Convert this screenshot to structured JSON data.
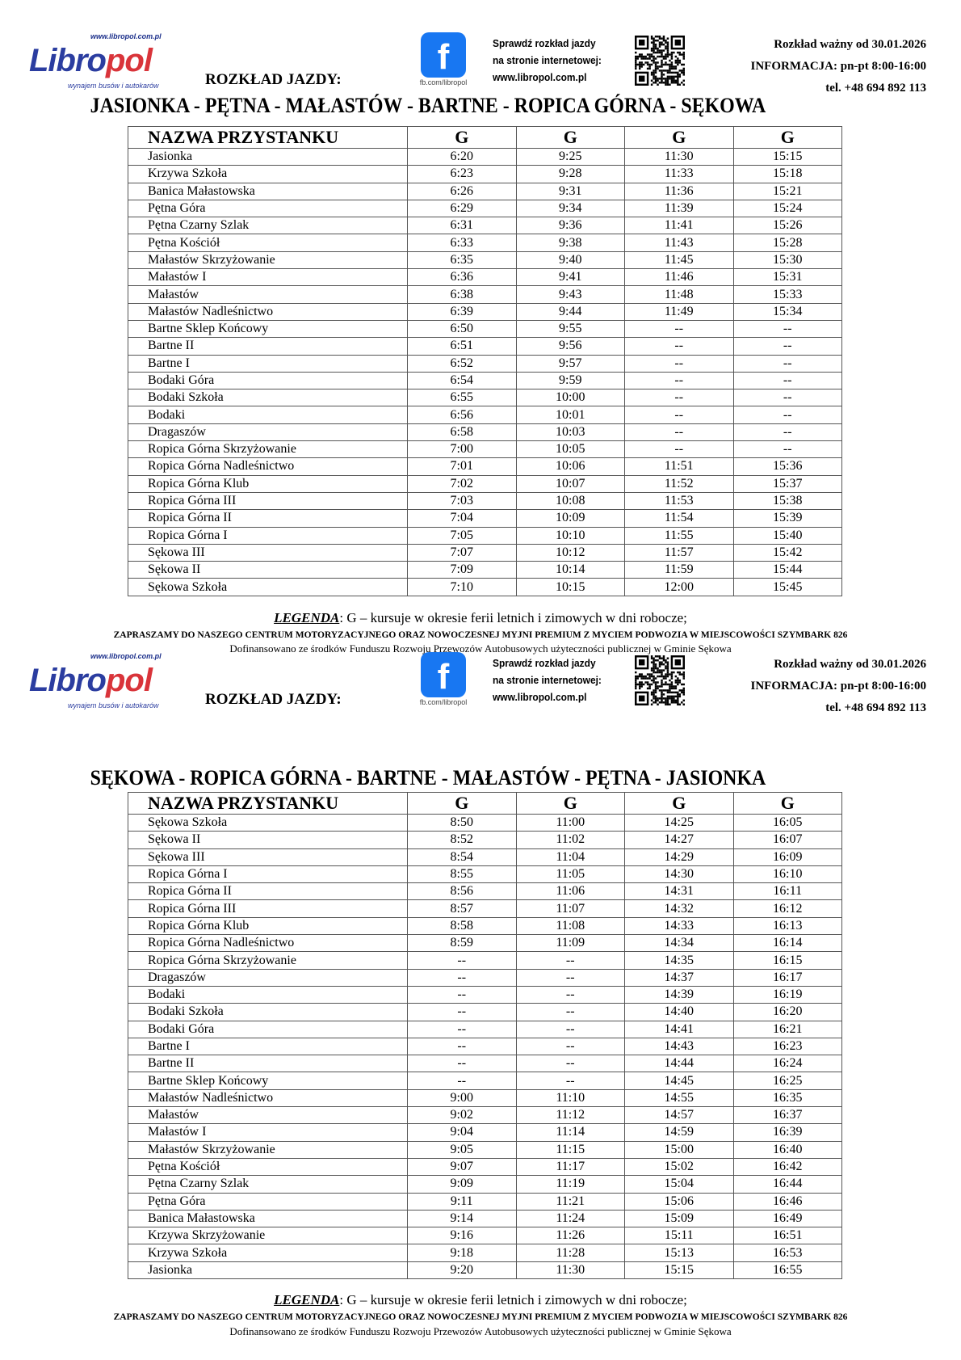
{
  "header": {
    "logo_text": "Libropol",
    "logo_url": "www.libropol.com.pl",
    "logo_tagline": "wynajem busów i autokarów",
    "rozklad_label": "ROZKŁAD JAZDY:",
    "facebook_caption": "fb.com/libropol",
    "check_lines": [
      "Sprawdź rozkład jazdy",
      "na stronie internetowej:",
      "www.libropol.com.pl"
    ],
    "valid_from": "Rozkład ważny od  30.01.2026",
    "info": "INFORMACJA: pn-pt 8:00-16:00",
    "phone": "tel. +48 694 892 113"
  },
  "footer": {
    "legend_label": "LEGENDA",
    "legend_text": ": G – kursuje w okresie ferii letnich i zimowych w dni robocze;",
    "promo": "ZAPRASZAMY DO NASZEGO CENTRUM MOTORYZACYJNEGO ORAZ NOWOCZESNEJ MYJNI PREMIUM Z MYCIEM PODWOZIA W MIEJSCOWOŚCI SZYMBARK 826",
    "funding": "Dofinansowano ze środków Funduszu Rozwoju Przewozów Autobusowych użyteczności publicznej w Gminie Sękowa"
  },
  "colors": {
    "brand_blue": "#2b3da0",
    "brand_red": "#d9343a",
    "facebook": "#1877f2"
  },
  "schedules": [
    {
      "title": "JASIONKA - PĘTNA - MAŁASTÓW - BARTNE - ROPICA GÓRNA - SĘKOWA",
      "columns": [
        "NAZWA PRZYSTANKU",
        "G",
        "G",
        "G",
        "G"
      ],
      "rows": [
        [
          "Jasionka",
          "6:20",
          "9:25",
          "11:30",
          "15:15"
        ],
        [
          "Krzywa Szkoła",
          "6:23",
          "9:28",
          "11:33",
          "15:18"
        ],
        [
          "Banica Małastowska",
          "6:26",
          "9:31",
          "11:36",
          "15:21"
        ],
        [
          "Pętna Góra",
          "6:29",
          "9:34",
          "11:39",
          "15:24"
        ],
        [
          "Pętna Czarny Szlak",
          "6:31",
          "9:36",
          "11:41",
          "15:26"
        ],
        [
          "Pętna Kościół",
          "6:33",
          "9:38",
          "11:43",
          "15:28"
        ],
        [
          "Małastów Skrzyżowanie",
          "6:35",
          "9:40",
          "11:45",
          "15:30"
        ],
        [
          "Małastów I",
          "6:36",
          "9:41",
          "11:46",
          "15:31"
        ],
        [
          "Małastów",
          "6:38",
          "9:43",
          "11:48",
          "15:33"
        ],
        [
          "Małastów Nadleśnictwo",
          "6:39",
          "9:44",
          "11:49",
          "15:34"
        ],
        [
          "Bartne Sklep Końcowy",
          "6:50",
          "9:55",
          "--",
          "--"
        ],
        [
          "Bartne II",
          "6:51",
          "9:56",
          "--",
          "--"
        ],
        [
          "Bartne I",
          "6:52",
          "9:57",
          "--",
          "--"
        ],
        [
          "Bodaki Góra",
          "6:54",
          "9:59",
          "--",
          "--"
        ],
        [
          "Bodaki Szkoła",
          "6:55",
          "10:00",
          "--",
          "--"
        ],
        [
          "Bodaki",
          "6:56",
          "10:01",
          "--",
          "--"
        ],
        [
          "Dragaszów",
          "6:58",
          "10:03",
          "--",
          "--"
        ],
        [
          "Ropica Górna Skrzyżowanie",
          "7:00",
          "10:05",
          "--",
          "--"
        ],
        [
          "Ropica Górna Nadleśnictwo",
          "7:01",
          "10:06",
          "11:51",
          "15:36"
        ],
        [
          "Ropica Górna Klub",
          "7:02",
          "10:07",
          "11:52",
          "15:37"
        ],
        [
          "Ropica Górna III",
          "7:03",
          "10:08",
          "11:53",
          "15:38"
        ],
        [
          "Ropica Górna II",
          "7:04",
          "10:09",
          "11:54",
          "15:39"
        ],
        [
          "Ropica Górna I",
          "7:05",
          "10:10",
          "11:55",
          "15:40"
        ],
        [
          "Sękowa III",
          "7:07",
          "10:12",
          "11:57",
          "15:42"
        ],
        [
          "Sękowa II",
          "7:09",
          "10:14",
          "11:59",
          "15:44"
        ],
        [
          "Sękowa Szkoła",
          "7:10",
          "10:15",
          "12:00",
          "15:45"
        ]
      ]
    },
    {
      "title": "SĘKOWA - ROPICA GÓRNA - BARTNE - MAŁASTÓW - PĘTNA - JASIONKA",
      "columns": [
        "NAZWA PRZYSTANKU",
        "G",
        "G",
        "G",
        "G"
      ],
      "rows": [
        [
          "Sękowa Szkoła",
          "8:50",
          "11:00",
          "14:25",
          "16:05"
        ],
        [
          "Sękowa II",
          "8:52",
          "11:02",
          "14:27",
          "16:07"
        ],
        [
          "Sękowa III",
          "8:54",
          "11:04",
          "14:29",
          "16:09"
        ],
        [
          "Ropica Górna I",
          "8:55",
          "11:05",
          "14:30",
          "16:10"
        ],
        [
          "Ropica Górna II",
          "8:56",
          "11:06",
          "14:31",
          "16:11"
        ],
        [
          "Ropica Górna III",
          "8:57",
          "11:07",
          "14:32",
          "16:12"
        ],
        [
          "Ropica Górna Klub",
          "8:58",
          "11:08",
          "14:33",
          "16:13"
        ],
        [
          "Ropica Górna Nadleśnictwo",
          "8:59",
          "11:09",
          "14:34",
          "16:14"
        ],
        [
          "Ropica Górna Skrzyżowanie",
          "--",
          "--",
          "14:35",
          "16:15"
        ],
        [
          "Dragaszów",
          "--",
          "--",
          "14:37",
          "16:17"
        ],
        [
          "Bodaki",
          "--",
          "--",
          "14:39",
          "16:19"
        ],
        [
          "Bodaki Szkoła",
          "--",
          "--",
          "14:40",
          "16:20"
        ],
        [
          "Bodaki Góra",
          "--",
          "--",
          "14:41",
          "16:21"
        ],
        [
          "Bartne I",
          "--",
          "--",
          "14:43",
          "16:23"
        ],
        [
          "Bartne II",
          "--",
          "--",
          "14:44",
          "16:24"
        ],
        [
          "Bartne Sklep Końcowy",
          "--",
          "--",
          "14:45",
          "16:25"
        ],
        [
          "Małastów Nadleśnictwo",
          "9:00",
          "11:10",
          "14:55",
          "16:35"
        ],
        [
          "Małastów",
          "9:02",
          "11:12",
          "14:57",
          "16:37"
        ],
        [
          "Małastów I",
          "9:04",
          "11:14",
          "14:59",
          "16:39"
        ],
        [
          "Małastów Skrzyżowanie",
          "9:05",
          "11:15",
          "15:00",
          "16:40"
        ],
        [
          "Pętna Kościół",
          "9:07",
          "11:17",
          "15:02",
          "16:42"
        ],
        [
          "Pętna Czarny Szlak",
          "9:09",
          "11:19",
          "15:04",
          "16:44"
        ],
        [
          "Pętna Góra",
          "9:11",
          "11:21",
          "15:06",
          "16:46"
        ],
        [
          "Banica Małastowska",
          "9:14",
          "11:24",
          "15:09",
          "16:49"
        ],
        [
          "Krzywa Skrzyżowanie",
          "9:16",
          "11:26",
          "15:11",
          "16:51"
        ],
        [
          "Krzywa Szkoła",
          "9:18",
          "11:28",
          "15:13",
          "16:53"
        ],
        [
          "Jasionka",
          "9:20",
          "11:30",
          "15:15",
          "16:55"
        ]
      ]
    }
  ]
}
